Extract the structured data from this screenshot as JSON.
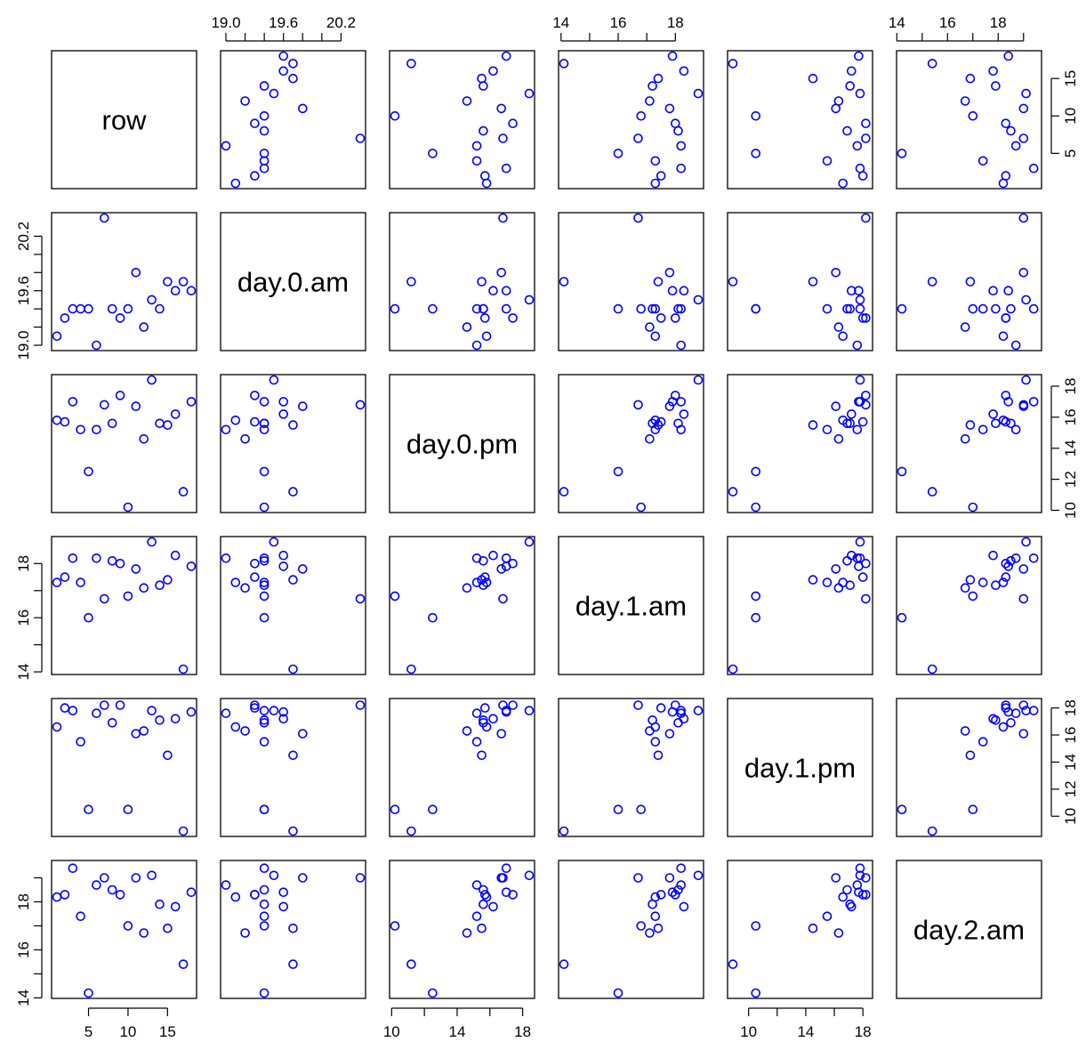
{
  "chart_data": {
    "type": "scatter",
    "plot": "scatterplot-matrix",
    "variables": [
      "row",
      "day.0.am",
      "day.0.pm",
      "day.1.am",
      "day.1.pm",
      "day.2.am"
    ],
    "point_color": "#0000ff",
    "marker": "open-circle",
    "grid": false,
    "ranges": {
      "row": [
        1,
        18
      ],
      "day.0.am": [
        19.0,
        20.4
      ],
      "day.0.pm": [
        10.2,
        18.4
      ],
      "day.1.am": [
        14.1,
        18.8
      ],
      "day.1.pm": [
        8.9,
        18.3
      ],
      "day.2.am": [
        14.2,
        19.5
      ]
    },
    "ticks": {
      "row": {
        "values": [
          5,
          10,
          15
        ],
        "labels": [
          "5",
          "10",
          "15"
        ],
        "labeled_sides": [
          "bottom",
          "right"
        ]
      },
      "day.0.am": {
        "values": [
          19.0,
          19.2,
          19.4,
          19.6,
          19.8,
          20.0,
          20.2
        ],
        "labels": [
          "19.0",
          "",
          "",
          "19.6",
          "",
          "",
          "20.2"
        ],
        "labeled_sides": [
          "top",
          "left"
        ]
      },
      "day.0.pm": {
        "values": [
          10,
          12,
          14,
          16,
          18
        ],
        "labels": [
          "10",
          "",
          "14",
          "",
          "18"
        ],
        "right_labels": [
          "10",
          "12",
          "14",
          "16",
          "18"
        ],
        "labeled_sides": [
          "bottom",
          "right"
        ]
      },
      "day.1.am": {
        "values": [
          14,
          15,
          16,
          17,
          18
        ],
        "labels": [
          "14",
          "",
          "16",
          "",
          "18"
        ],
        "labeled_sides": [
          "top",
          "left"
        ]
      },
      "day.1.pm": {
        "values": [
          10,
          12,
          14,
          16,
          18
        ],
        "labels": [
          "10",
          "",
          "14",
          "",
          "18"
        ],
        "right_labels": [
          "10",
          "12",
          "14",
          "16",
          "18"
        ],
        "labeled_sides": [
          "bottom",
          "right"
        ]
      },
      "day.2.am": {
        "values": [
          14,
          15,
          16,
          17,
          18,
          19
        ],
        "labels": [
          "14",
          "",
          "16",
          "",
          "18",
          ""
        ],
        "labeled_sides": [
          "top",
          "left"
        ]
      }
    },
    "observations": [
      {
        "row": 1,
        "day.0.am": 19.1,
        "day.0.pm": 15.8,
        "day.1.am": 17.3,
        "day.1.pm": 16.6,
        "day.2.am": 18.2
      },
      {
        "row": 2,
        "day.0.am": 19.3,
        "day.0.pm": 15.7,
        "day.1.am": 17.5,
        "day.1.pm": 18.0,
        "day.2.am": 18.3
      },
      {
        "row": 3,
        "day.0.am": 19.4,
        "day.0.pm": 17.0,
        "day.1.am": 18.2,
        "day.1.pm": 17.8,
        "day.2.am": 19.4
      },
      {
        "row": 4,
        "day.0.am": 19.4,
        "day.0.pm": 15.2,
        "day.1.am": 17.3,
        "day.1.pm": 15.5,
        "day.2.am": 17.4
      },
      {
        "row": 5,
        "day.0.am": 19.4,
        "day.0.pm": 12.5,
        "day.1.am": 16.0,
        "day.1.pm": 10.5,
        "day.2.am": 14.2
      },
      {
        "row": 6,
        "day.0.am": 19.0,
        "day.0.pm": 15.2,
        "day.1.am": 18.2,
        "day.1.pm": 17.6,
        "day.2.am": 18.7
      },
      {
        "row": 7,
        "day.0.am": 20.4,
        "day.0.pm": 16.8,
        "day.1.am": 16.7,
        "day.1.pm": 18.2,
        "day.2.am": 19.0
      },
      {
        "row": 8,
        "day.0.am": 19.4,
        "day.0.pm": 15.6,
        "day.1.am": 18.1,
        "day.1.pm": 16.9,
        "day.2.am": 18.5
      },
      {
        "row": 9,
        "day.0.am": 19.3,
        "day.0.pm": 17.4,
        "day.1.am": 18.0,
        "day.1.pm": 18.2,
        "day.2.am": 18.3
      },
      {
        "row": 10,
        "day.0.am": 19.4,
        "day.0.pm": 10.2,
        "day.1.am": 16.8,
        "day.1.pm": 10.5,
        "day.2.am": 17.0
      },
      {
        "row": 11,
        "day.0.am": 19.8,
        "day.0.pm": 16.7,
        "day.1.am": 17.8,
        "day.1.pm": 16.1,
        "day.2.am": 19.0
      },
      {
        "row": 12,
        "day.0.am": 19.2,
        "day.0.pm": 14.6,
        "day.1.am": 17.1,
        "day.1.pm": 16.3,
        "day.2.am": 16.7
      },
      {
        "row": 13,
        "day.0.am": 19.5,
        "day.0.pm": 18.4,
        "day.1.am": 18.8,
        "day.1.pm": 17.8,
        "day.2.am": 19.1
      },
      {
        "row": 14,
        "day.0.am": 19.4,
        "day.0.pm": 15.6,
        "day.1.am": 17.2,
        "day.1.pm": 17.1,
        "day.2.am": 17.9
      },
      {
        "row": 15,
        "day.0.am": 19.7,
        "day.0.pm": 15.5,
        "day.1.am": 17.4,
        "day.1.pm": 14.5,
        "day.2.am": 16.9
      },
      {
        "row": 16,
        "day.0.am": 19.6,
        "day.0.pm": 16.2,
        "day.1.am": 18.3,
        "day.1.pm": 17.2,
        "day.2.am": 17.8
      },
      {
        "row": 17,
        "day.0.am": 19.7,
        "day.0.pm": 11.2,
        "day.1.am": 14.1,
        "day.1.pm": 8.9,
        "day.2.am": 15.4
      },
      {
        "row": 18,
        "day.0.am": 19.6,
        "day.0.pm": 17.0,
        "day.1.am": 17.9,
        "day.1.pm": 17.7,
        "day.2.am": 18.4
      }
    ]
  }
}
